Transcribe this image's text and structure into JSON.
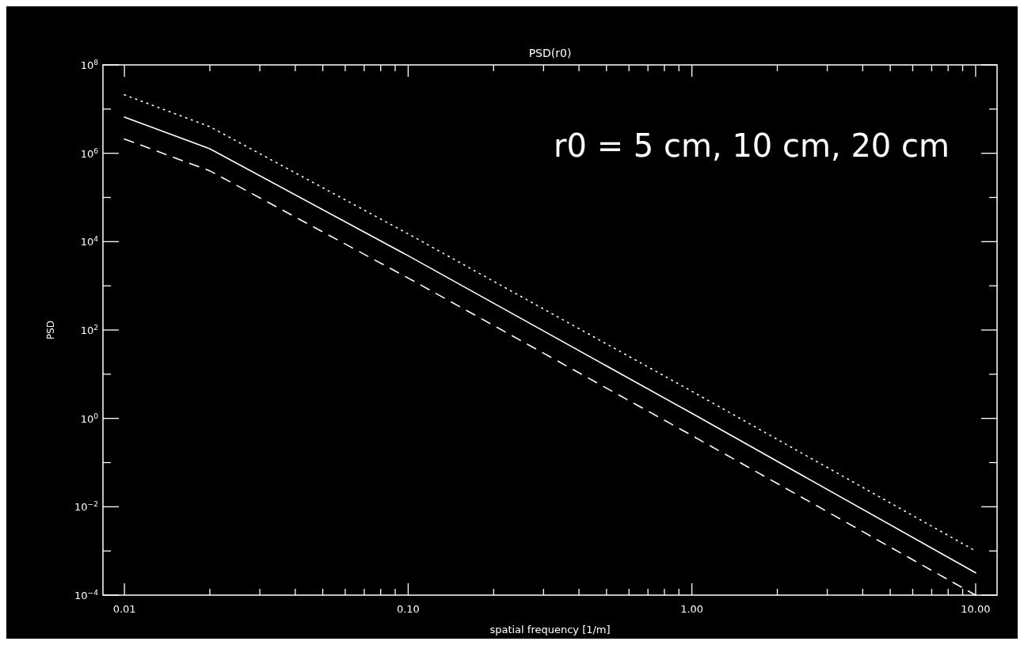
{
  "chart_data": {
    "type": "line",
    "title": "PSD(r0)",
    "xlabel": "spatial frequency [1/m]",
    "ylabel": "PSD",
    "log": "xy",
    "grid": false,
    "marker": "none",
    "annotations": [
      "r0 = 5 cm, 10 cm, 20 cm"
    ],
    "xlim": [
      0.0084,
      11.9
    ],
    "xticks": [
      {
        "value": 0.01,
        "label": "0.01"
      },
      {
        "value": 0.02,
        "label": null
      },
      {
        "value": 0.03,
        "label": null
      },
      {
        "value": 0.04,
        "label": null
      },
      {
        "value": 0.05,
        "label": null
      },
      {
        "value": 0.06,
        "label": null
      },
      {
        "value": 0.07,
        "label": null
      },
      {
        "value": 0.08,
        "label": null
      },
      {
        "value": 0.09,
        "label": null
      },
      {
        "value": 0.1,
        "label": "0.10"
      },
      {
        "value": 0.2,
        "label": null
      },
      {
        "value": 0.3,
        "label": null
      },
      {
        "value": 0.4,
        "label": null
      },
      {
        "value": 0.5,
        "label": null
      },
      {
        "value": 0.6,
        "label": null
      },
      {
        "value": 0.7,
        "label": null
      },
      {
        "value": 0.8,
        "label": null
      },
      {
        "value": 0.9,
        "label": null
      },
      {
        "value": 1,
        "label": "1.00"
      },
      {
        "value": 2,
        "label": null
      },
      {
        "value": 3,
        "label": null
      },
      {
        "value": 4,
        "label": null
      },
      {
        "value": 5,
        "label": null
      },
      {
        "value": 6,
        "label": null
      },
      {
        "value": 7,
        "label": null
      },
      {
        "value": 8,
        "label": null
      },
      {
        "value": 9,
        "label": null
      },
      {
        "value": 10,
        "label": "10.00"
      }
    ],
    "ylim": [
      0.0001,
      100000000.0
    ],
    "yticks": [
      {
        "value": 0.0001,
        "label": "10$^{−4}$"
      },
      {
        "value": 0.001,
        "label": null
      },
      {
        "value": 0.01,
        "label": "10$^{−2}$"
      },
      {
        "value": 0.1,
        "label": null
      },
      {
        "value": 1,
        "label": "10$^{0}$"
      },
      {
        "value": 10,
        "label": null
      },
      {
        "value": 100,
        "label": "10$^{2}$"
      },
      {
        "value": 1000,
        "label": null
      },
      {
        "value": 10000.0,
        "label": "10$^{4}$"
      },
      {
        "value": 100000.0,
        "label": null
      },
      {
        "value": 1000000.0,
        "label": "10$^{6}$"
      },
      {
        "value": 10000000.0,
        "label": null
      },
      {
        "value": 100000000.0,
        "label": "10$^{8}$"
      }
    ],
    "x": [
      0.01,
      0.02,
      0.1,
      1,
      10
    ],
    "series": [
      {
        "color": "#ffffff",
        "line_style": "solid",
        "values": [
          6600000.0,
          1260000.0,
          4800.0,
          1.3,
          0.00032
        ]
      },
      {
        "color": "#ffffff",
        "line_style": "dotted",
        "values": [
          21000000.0,
          4000000.0,
          15000.0,
          4.1,
          0.001
        ]
      },
      {
        "color": "#ffffff",
        "line_style": "dashed",
        "values": [
          2100000.0,
          400000.0,
          1500.0,
          0.41,
          0.0001
        ]
      }
    ]
  }
}
